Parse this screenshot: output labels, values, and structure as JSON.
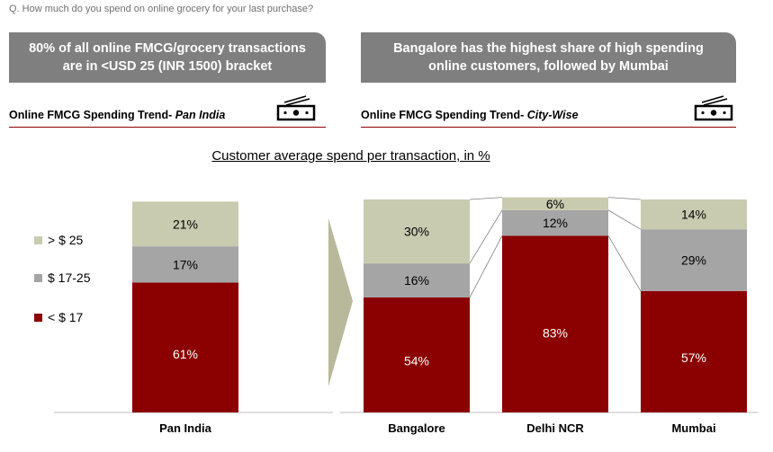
{
  "question": "Q. How much do you spend on online grocery for your last purchase?",
  "banners": {
    "left_line1": "80% of all online FMCG/grocery transactions",
    "left_line2": "are in <USD 25 (INR 1500) bracket",
    "right_line1": "Bangalore has the highest share of high spending",
    "right_line2": "online customers, followed by Mumbai"
  },
  "sections": {
    "left_prefix": "Online FMCG Spending Trend- ",
    "left_emph": "Pan India",
    "right_prefix": "Online FMCG Spending Trend- ",
    "right_emph": "City-Wise"
  },
  "icons": {
    "left": "money-icon",
    "right": "money-icon"
  },
  "colors": {
    "low": "#8b0000",
    "mid": "#a5a5a5",
    "high": "#c9cbb0",
    "accent": "#8b0000",
    "arrow": "#b8b99a"
  },
  "legend": [
    {
      "label": "> $ 25",
      "color": "#c9cbb0"
    },
    {
      "label": "$ 17-25",
      "color": "#a5a5a5"
    },
    {
      "label": "< $ 17",
      "color": "#8b0000"
    }
  ],
  "chart_data": {
    "type": "bar",
    "stacked": true,
    "title": "Customer average spend per transaction, in %",
    "categories": [
      "Pan India",
      "Bangalore",
      "Delhi NCR",
      "Mumbai"
    ],
    "series": [
      {
        "name": "< $ 17",
        "values": [
          61,
          54,
          83,
          57
        ],
        "labels": [
          "61%",
          "54%",
          "83%",
          "57%"
        ]
      },
      {
        "name": "$ 17-25",
        "values": [
          17,
          16,
          12,
          29
        ],
        "labels": [
          "17%",
          "16%",
          "12%",
          "29%"
        ]
      },
      {
        "name": "> $ 25",
        "values": [
          21,
          30,
          6,
          14
        ],
        "labels": [
          "21%",
          "30%",
          "6%",
          "14%"
        ]
      }
    ],
    "ylim": [
      0,
      100
    ]
  }
}
